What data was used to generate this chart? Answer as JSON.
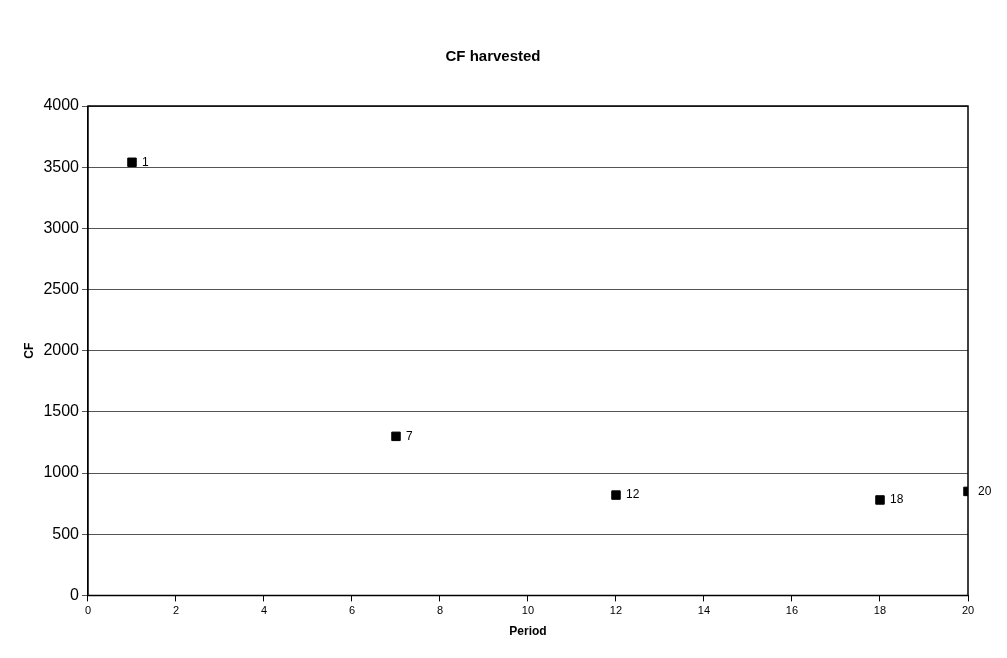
{
  "chart_data": {
    "type": "scatter",
    "title": "CF harvested",
    "xlabel": "Period",
    "ylabel": "CF",
    "x": [
      1,
      7,
      12,
      18,
      20
    ],
    "series": [
      {
        "color": "#000000",
        "values": [
          3540,
          1300,
          820,
          780,
          850
        ]
      }
    ],
    "annotations": [
      {
        "text": "1",
        "x": 1,
        "y": 3540
      },
      {
        "text": "7",
        "x": 7,
        "y": 1300
      },
      {
        "text": "12",
        "x": 12,
        "y": 820
      },
      {
        "text": "18",
        "x": 18,
        "y": 780
      },
      {
        "text": "20",
        "x": 20,
        "y": 850
      }
    ],
    "xlim": [
      0,
      20
    ],
    "xticks": [
      0,
      2,
      4,
      6,
      8,
      10,
      12,
      14,
      16,
      18,
      20
    ],
    "ylim": [
      0,
      4000
    ],
    "yticks": [
      0,
      500,
      1000,
      1500,
      2000,
      2500,
      3000,
      3500,
      4000
    ],
    "grid": "y",
    "legend": false,
    "marker": "square"
  }
}
